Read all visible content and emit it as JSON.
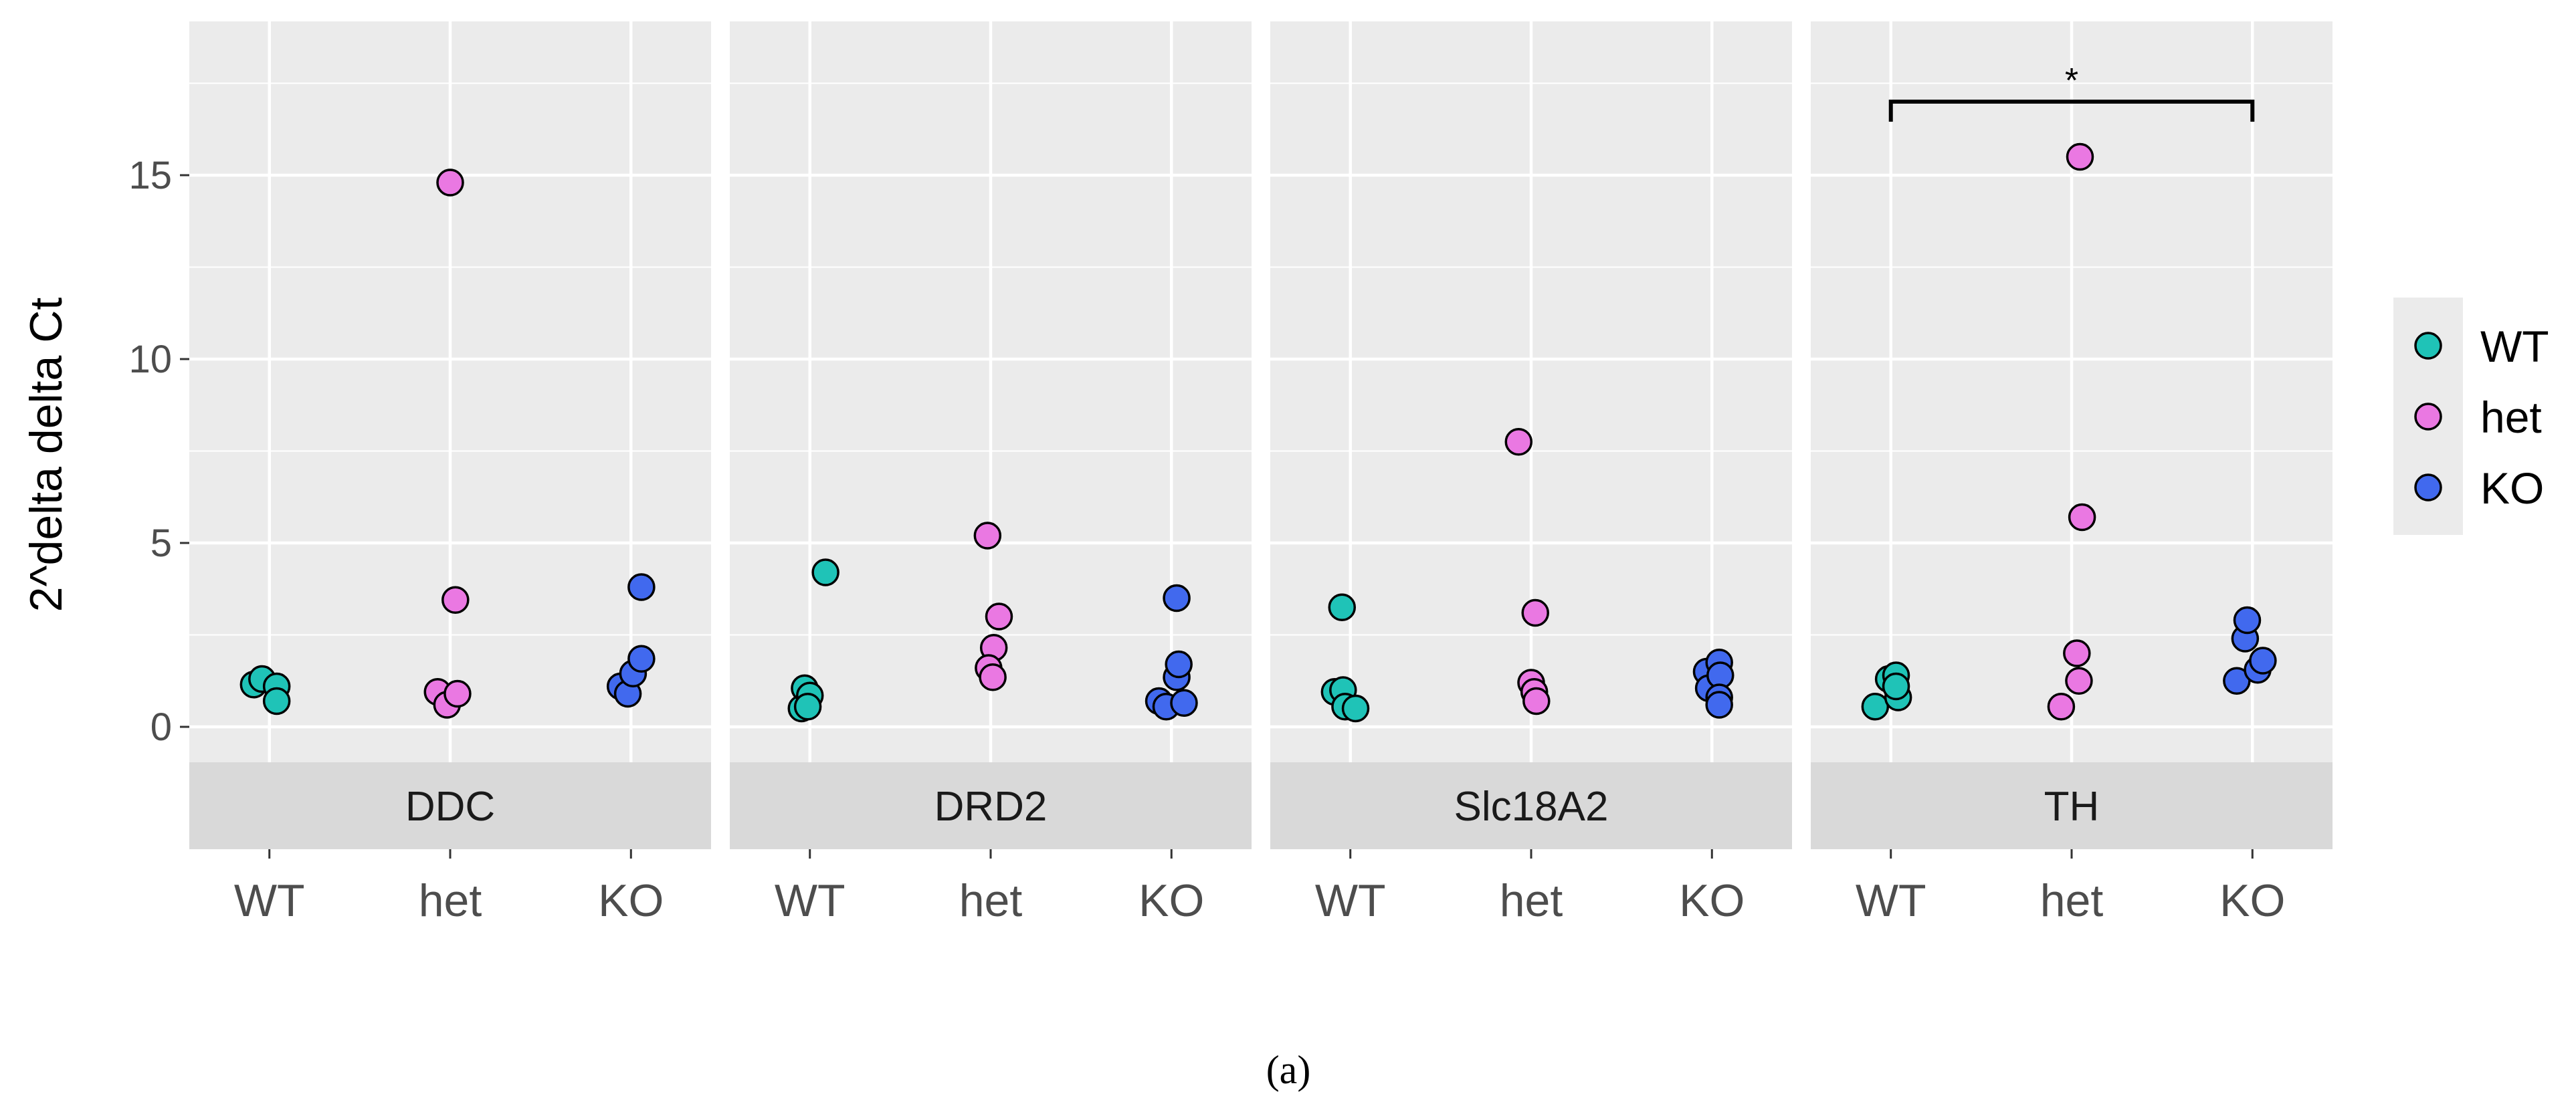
{
  "chart_data": {
    "type": "scatter",
    "facet_by": "gene",
    "ylabel": "2^delta delta Ct",
    "xlabel": "",
    "ylim": [
      -1.0,
      19.0
    ],
    "y_ticks": [
      0,
      5,
      10,
      15
    ],
    "grid": true,
    "categories": [
      "WT",
      "het",
      "KO"
    ],
    "legend": {
      "position": "right",
      "items": [
        {
          "label": "WT",
          "color": "#1fc3b7"
        },
        {
          "label": "het",
          "color": "#ea78e2"
        },
        {
          "label": "KO",
          "color": "#4169ee"
        }
      ]
    },
    "panels": [
      {
        "gene": "DDC",
        "groups": [
          {
            "name": "WT",
            "points": [
              [
                -0.15,
                1.15
              ],
              [
                -0.07,
                1.3
              ],
              [
                0.07,
                1.1
              ],
              [
                0.07,
                0.7
              ]
            ]
          },
          {
            "name": "het",
            "points": [
              [
                -0.12,
                0.95
              ],
              [
                0.0,
                14.8
              ],
              [
                -0.03,
                0.6
              ],
              [
                0.05,
                3.45
              ],
              [
                0.07,
                0.9
              ]
            ]
          },
          {
            "name": "KO",
            "points": [
              [
                -0.1,
                1.1
              ],
              [
                -0.03,
                0.9
              ],
              [
                0.02,
                1.45
              ],
              [
                0.1,
                1.85
              ],
              [
                0.1,
                3.8
              ]
            ]
          }
        ]
      },
      {
        "gene": "DRD2",
        "groups": [
          {
            "name": "WT",
            "points": [
              [
                -0.08,
                0.5
              ],
              [
                -0.05,
                1.05
              ],
              [
                0.0,
                0.85
              ],
              [
                -0.02,
                0.55
              ],
              [
                0.15,
                4.2
              ]
            ]
          },
          {
            "name": "het",
            "points": [
              [
                -0.03,
                5.2
              ],
              [
                0.08,
                3.0
              ],
              [
                0.03,
                2.15
              ],
              [
                -0.02,
                1.6
              ],
              [
                0.02,
                1.35
              ]
            ]
          },
          {
            "name": "KO",
            "points": [
              [
                -0.12,
                0.7
              ],
              [
                -0.05,
                0.55
              ],
              [
                0.05,
                1.35
              ],
              [
                0.07,
                1.7
              ],
              [
                0.05,
                3.5
              ],
              [
                0.12,
                0.65
              ]
            ]
          }
        ]
      },
      {
        "gene": "Slc18A2",
        "groups": [
          {
            "name": "WT",
            "points": [
              [
                -0.15,
                0.95
              ],
              [
                -0.07,
                1.0
              ],
              [
                -0.05,
                0.55
              ],
              [
                0.05,
                0.5
              ],
              [
                -0.08,
                3.25
              ]
            ]
          },
          {
            "name": "het",
            "points": [
              [
                -0.12,
                7.75
              ],
              [
                0.04,
                3.1
              ],
              [
                0.0,
                1.2
              ],
              [
                0.03,
                0.95
              ],
              [
                0.05,
                0.7
              ]
            ]
          },
          {
            "name": "KO",
            "points": [
              [
                -0.05,
                1.5
              ],
              [
                -0.03,
                1.05
              ],
              [
                0.07,
                1.75
              ],
              [
                0.08,
                1.4
              ],
              [
                0.07,
                0.8
              ],
              [
                0.07,
                0.6
              ]
            ]
          }
        ]
      },
      {
        "gene": "TH",
        "groups": [
          {
            "name": "WT",
            "points": [
              [
                -0.15,
                0.55
              ],
              [
                -0.02,
                1.3
              ],
              [
                0.05,
                1.4
              ],
              [
                0.07,
                0.8
              ],
              [
                0.05,
                1.1
              ]
            ]
          },
          {
            "name": "het",
            "points": [
              [
                0.08,
                15.5
              ],
              [
                0.1,
                5.7
              ],
              [
                0.05,
                2.0
              ],
              [
                0.07,
                1.25
              ],
              [
                -0.1,
                0.55
              ]
            ]
          },
          {
            "name": "KO",
            "points": [
              [
                -0.15,
                1.25
              ],
              [
                -0.07,
                2.4
              ],
              [
                -0.05,
                2.9
              ],
              [
                0.05,
                1.55
              ],
              [
                0.1,
                1.8
              ]
            ]
          }
        ]
      }
    ],
    "annotations": [
      {
        "panel": "TH",
        "type": "bracket",
        "from": "WT",
        "to": "KO",
        "y": 17.0,
        "label": "*"
      }
    ]
  },
  "caption": "(a)"
}
